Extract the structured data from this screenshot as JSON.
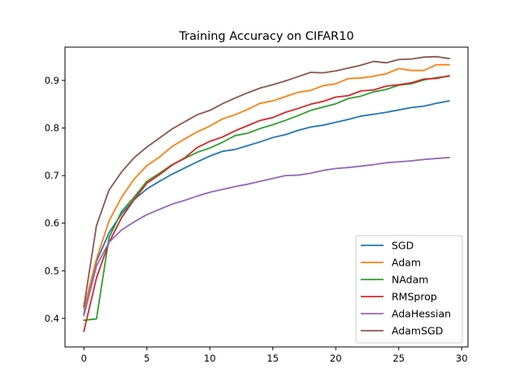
{
  "chart_data": {
    "type": "line",
    "title": "Training Accuracy on CIFAR10",
    "xlabel": "",
    "ylabel": "",
    "xlim": [
      -1.5,
      30.5
    ],
    "ylim": [
      0.34,
      0.97
    ],
    "xticks": [
      0,
      5,
      10,
      15,
      20,
      25,
      30
    ],
    "yticks": [
      0.4,
      0.5,
      0.6,
      0.7,
      0.8,
      0.9
    ],
    "ytick_labels": [
      "0.4",
      "0.5",
      "0.6",
      "0.7",
      "0.8",
      "0.9"
    ],
    "grid": false,
    "legend_position": "bottom-right",
    "x": [
      0,
      1,
      2,
      3,
      4,
      5,
      6,
      7,
      8,
      9,
      10,
      11,
      12,
      13,
      14,
      15,
      16,
      17,
      18,
      19,
      20,
      21,
      22,
      23,
      24,
      25,
      26,
      27,
      28,
      29
    ],
    "series": [
      {
        "name": "SGD",
        "color": "#1f77b4",
        "values": [
          0.41,
          0.52,
          0.58,
          0.62,
          0.65,
          0.672,
          0.688,
          0.703,
          0.716,
          0.729,
          0.741,
          0.751,
          0.755,
          0.763,
          0.771,
          0.78,
          0.786,
          0.795,
          0.802,
          0.806,
          0.812,
          0.818,
          0.825,
          0.829,
          0.833,
          0.838,
          0.843,
          0.846,
          0.852,
          0.857
        ]
      },
      {
        "name": "Adam",
        "color": "#ff7f0e",
        "values": [
          0.42,
          0.525,
          0.605,
          0.655,
          0.693,
          0.721,
          0.739,
          0.761,
          0.777,
          0.792,
          0.804,
          0.819,
          0.828,
          0.839,
          0.852,
          0.857,
          0.866,
          0.875,
          0.879,
          0.889,
          0.893,
          0.904,
          0.905,
          0.909,
          0.914,
          0.925,
          0.921,
          0.921,
          0.933,
          0.933
        ]
      },
      {
        "name": "NAdam",
        "color": "#2ca02c",
        "values": [
          0.396,
          0.399,
          0.57,
          0.625,
          0.655,
          0.688,
          0.705,
          0.723,
          0.736,
          0.749,
          0.758,
          0.77,
          0.784,
          0.789,
          0.799,
          0.807,
          0.816,
          0.826,
          0.837,
          0.844,
          0.851,
          0.862,
          0.867,
          0.876,
          0.881,
          0.89,
          0.893,
          0.901,
          0.906,
          0.909
        ]
      },
      {
        "name": "RMSprop",
        "color": "#d62728",
        "values": [
          0.373,
          0.485,
          0.56,
          0.612,
          0.65,
          0.684,
          0.702,
          0.722,
          0.737,
          0.759,
          0.772,
          0.781,
          0.794,
          0.805,
          0.816,
          0.822,
          0.833,
          0.841,
          0.85,
          0.856,
          0.865,
          0.868,
          0.878,
          0.88,
          0.888,
          0.891,
          0.895,
          0.903,
          0.904,
          0.91
        ]
      },
      {
        "name": "AdaHessian",
        "color": "#9467bd",
        "values": [
          0.406,
          0.51,
          0.56,
          0.586,
          0.603,
          0.618,
          0.629,
          0.64,
          0.648,
          0.657,
          0.665,
          0.671,
          0.677,
          0.682,
          0.688,
          0.694,
          0.7,
          0.701,
          0.705,
          0.711,
          0.715,
          0.717,
          0.72,
          0.723,
          0.727,
          0.729,
          0.731,
          0.734,
          0.736,
          0.738
        ]
      },
      {
        "name": "AdamSGD",
        "color": "#8c564b",
        "values": [
          0.425,
          0.595,
          0.67,
          0.708,
          0.738,
          0.76,
          0.779,
          0.798,
          0.813,
          0.828,
          0.837,
          0.851,
          0.863,
          0.874,
          0.884,
          0.891,
          0.899,
          0.908,
          0.917,
          0.916,
          0.92,
          0.926,
          0.932,
          0.94,
          0.937,
          0.944,
          0.945,
          0.949,
          0.95,
          0.946
        ]
      }
    ]
  }
}
